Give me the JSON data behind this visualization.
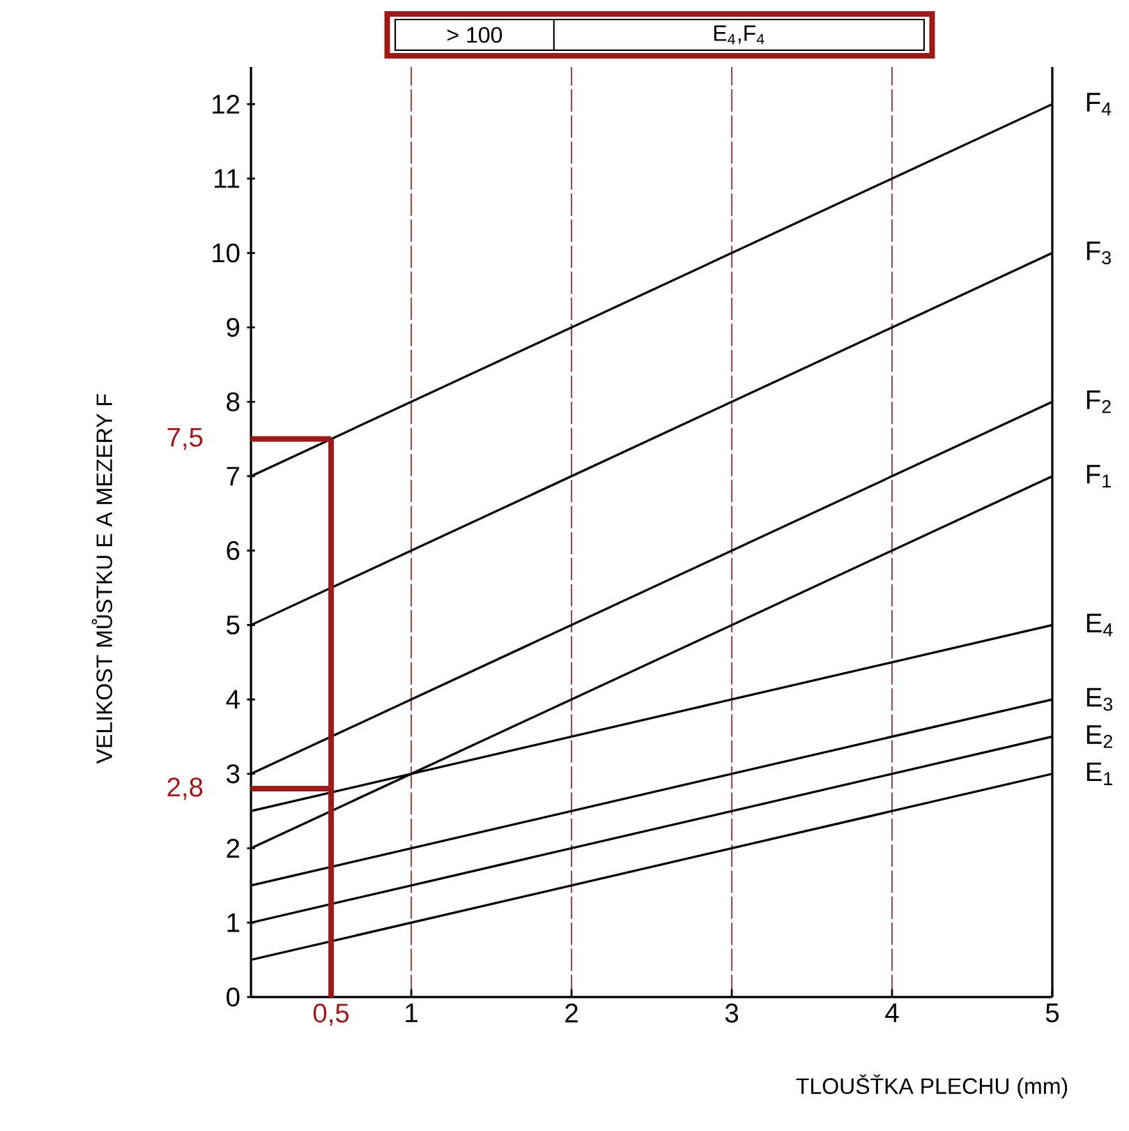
{
  "chart_data": {
    "type": "line",
    "xlabel": "TLOUŠŤKA PLECHU (mm)",
    "ylabel": "VELIKOST MŮSTKU E A MEZERY F",
    "x": [
      0,
      5
    ],
    "series": [
      {
        "name": "F$_{4}$",
        "color": "#000000",
        "values": [
          7,
          12
        ]
      },
      {
        "name": "F$_{3}$",
        "color": "#000000",
        "values": [
          5,
          10
        ]
      },
      {
        "name": "F$_{2}$",
        "color": "#000000",
        "values": [
          3,
          8
        ]
      },
      {
        "name": "F$_{1}$",
        "color": "#000000",
        "values": [
          2,
          7
        ]
      },
      {
        "name": "E$_{4}$",
        "color": "#000000",
        "values": [
          2.5,
          5
        ]
      },
      {
        "name": "E$_{3}$",
        "color": "#000000",
        "values": [
          1.5,
          4
        ]
      },
      {
        "name": "E$_{2}$",
        "color": "#000000",
        "values": [
          1,
          3.5
        ]
      },
      {
        "name": "E$_{1}$",
        "color": "#000000",
        "values": [
          0.5,
          3
        ]
      }
    ],
    "xlim": [
      0,
      5
    ],
    "ylim": [
      0,
      12.5
    ],
    "xticks": [
      1,
      2,
      3,
      4,
      5
    ],
    "yticks": [
      0,
      1,
      2,
      3,
      4,
      5,
      6,
      7,
      8,
      9,
      10,
      11,
      12
    ],
    "grid": "x",
    "marker": "none",
    "line_style": "solid",
    "ref_lines": [
      {
        "axis": "x",
        "value": 0.5,
        "label": "0,5",
        "color": "#9b1b1b"
      },
      {
        "axis": "y",
        "value": 7.5,
        "label": "7,5",
        "color": "#9b1b1b"
      },
      {
        "axis": "y",
        "value": 2.8,
        "label": "2,8",
        "color": "#9b1b1b"
      }
    ],
    "annotations": [
      "> 100",
      "E$_{4}$,F$_{4}$"
    ]
  }
}
